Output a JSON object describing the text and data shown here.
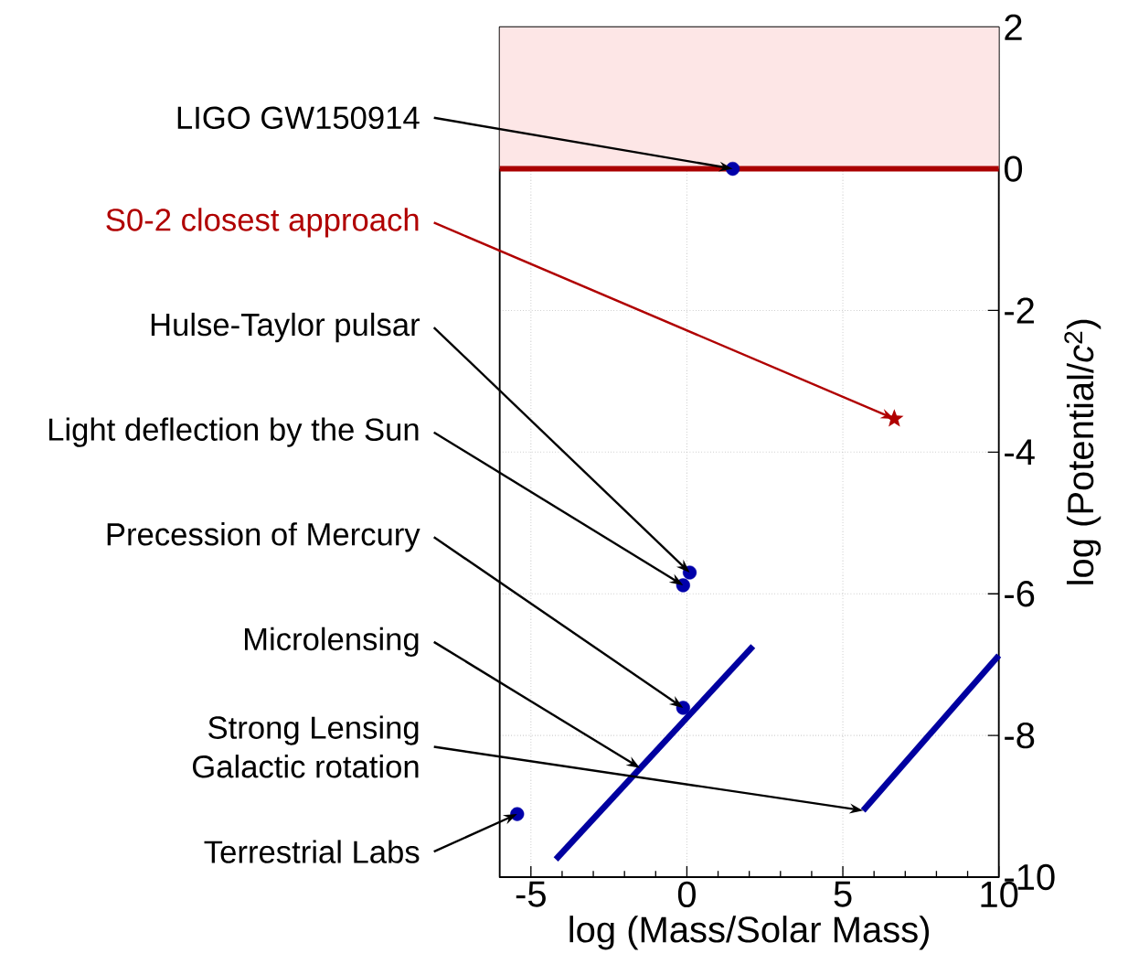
{
  "chart_data": {
    "type": "scatter",
    "xlabel": "log (Mass/Solar Mass)",
    "ylabel": "log (Potential/*c*$^{2}$)",
    "xlim": [
      -6,
      10
    ],
    "ylim": [
      -10,
      2
    ],
    "xticks": [
      -5,
      0,
      5,
      10
    ],
    "yticks": [
      -10,
      -8,
      -6,
      -4,
      -2,
      0,
      2
    ],
    "grid": true,
    "series": [
      {
        "marker": "circle",
        "color": "#0000aa",
        "x": [
          1.47,
          0.09,
          -0.12,
          -0.12,
          -5.44
        ],
        "values": [
          0,
          -5.7,
          -5.88,
          -7.61,
          -9.11
        ]
      },
      {
        "marker": "star",
        "name": "S0-2 closest approach",
        "color": "#b00000",
        "x": [
          6.65
        ],
        "values": [
          -3.53
        ]
      },
      {
        "type": "line",
        "marker": "none",
        "color": "#0000a0",
        "x": [
          -4.2,
          2.12
        ],
        "values": [
          -9.75,
          -6.74
        ]
      },
      {
        "type": "line",
        "marker": "none",
        "color": "#0000a0",
        "x": [
          5.65,
          10
        ],
        "values": [
          -9.06,
          -6.87
        ]
      }
    ],
    "ref_lines": [
      {
        "axis": "y",
        "value": 0,
        "color": "#aa0000"
      }
    ],
    "bands": [
      {
        "axis": "y",
        "from": 0,
        "to": 2,
        "color": "#fde6e6"
      }
    ],
    "annotations": [
      {
        "text": "LIGO GW150914",
        "x": 1.47,
        "y": 0
      },
      {
        "text": "Hulse-Taylor pulsar",
        "x": 0.09,
        "y": -5.7
      },
      {
        "text": "Light deflection by the Sun",
        "x": -0.12,
        "y": -5.88
      },
      {
        "text": "Precession of Mercury",
        "x": -0.12,
        "y": -7.61
      },
      {
        "text": "Microlensing",
        "x": -1.5,
        "y": -8.46
      },
      {
        "text": "Strong Lensing",
        "x": 5.65,
        "y": -9.06
      },
      {
        "text": "Galactic rotation",
        "x": 5.65,
        "y": -9.06
      },
      {
        "text": "Terrestrial Labs",
        "x": -5.44,
        "y": -9.11
      }
    ]
  }
}
